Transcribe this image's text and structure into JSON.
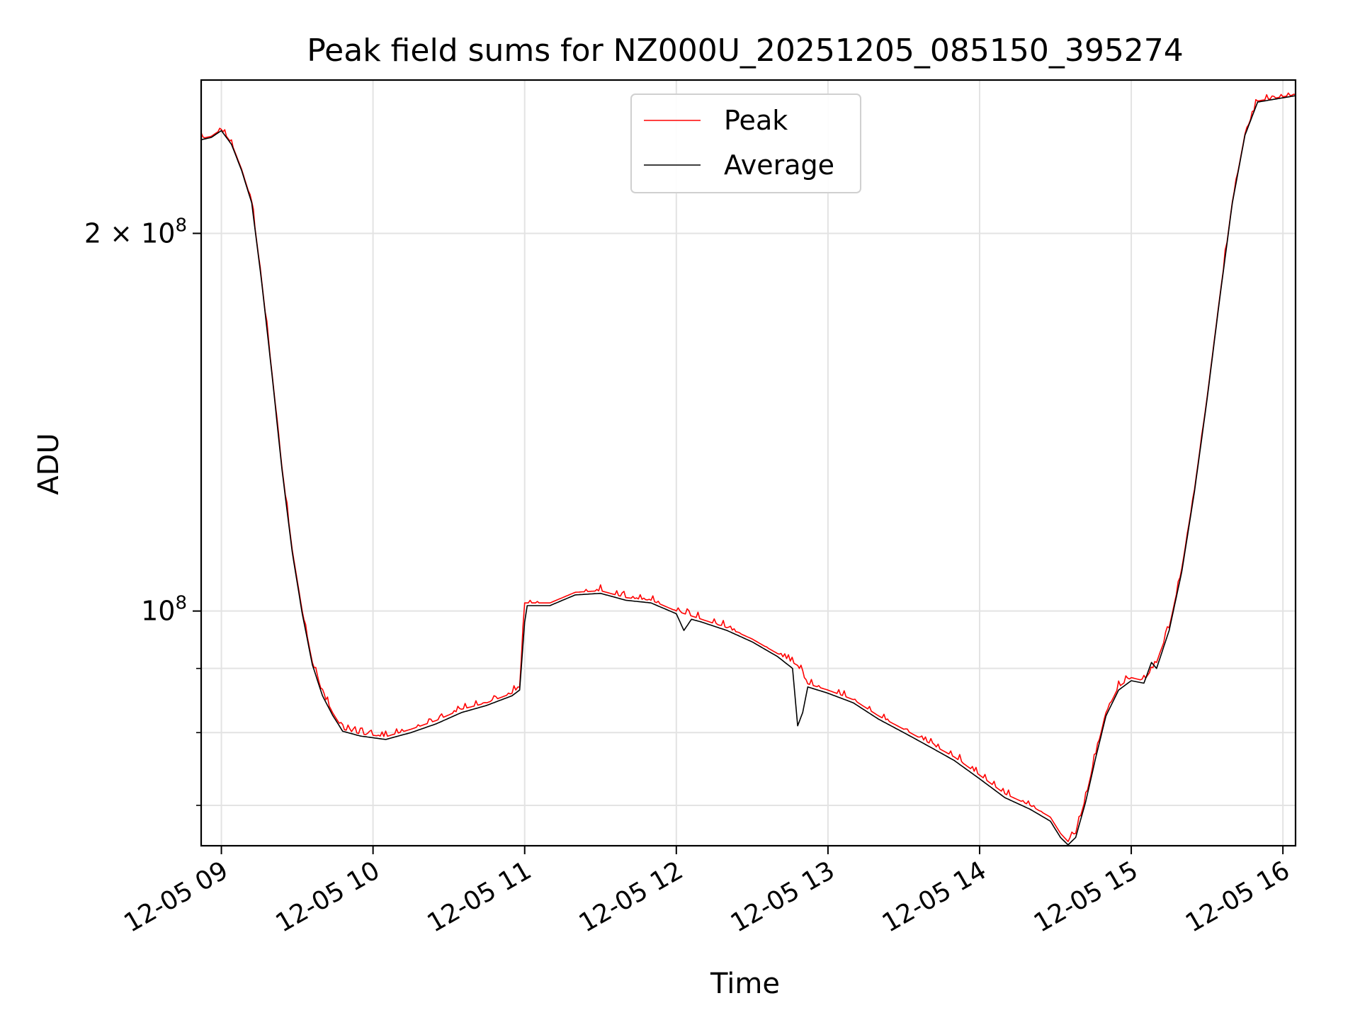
{
  "chart_data": {
    "type": "line",
    "title": "Peak field sums for NZ000U_20251205_085150_395274",
    "xlabel": "Time",
    "ylabel": "ADU",
    "yscale": "log",
    "xlim": [
      "2025-12-05 08:52",
      "2025-12-05 16:05"
    ],
    "ylim": [
      65000000,
      265000000
    ],
    "grid": true,
    "legend_position": "top-center",
    "x_ticks": [
      {
        "time": "2025-12-05 09:00",
        "label": "12-05 09"
      },
      {
        "time": "2025-12-05 10:00",
        "label": "12-05 10"
      },
      {
        "time": "2025-12-05 11:00",
        "label": "12-05 11"
      },
      {
        "time": "2025-12-05 12:00",
        "label": "12-05 12"
      },
      {
        "time": "2025-12-05 13:00",
        "label": "12-05 13"
      },
      {
        "time": "2025-12-05 14:00",
        "label": "12-05 14"
      },
      {
        "time": "2025-12-05 15:00",
        "label": "12-05 15"
      },
      {
        "time": "2025-12-05 16:00",
        "label": "12-05 16"
      }
    ],
    "y_major_ticks": [
      {
        "value": 100000000,
        "base": "10",
        "exp": "8",
        "mult": ""
      },
      {
        "value": 200000000,
        "base": "10",
        "exp": "8",
        "mult": "2 × "
      }
    ],
    "y_minor_ticks": [
      70000000,
      80000000,
      90000000
    ],
    "series": [
      {
        "name": "Peak",
        "color": "#ff0000",
        "jitter": true,
        "points": [
          [
            "2025-12-05 08:52",
            238000000
          ],
          [
            "2025-12-05 08:56",
            239000000
          ],
          [
            "2025-12-05 09:00",
            242000000
          ],
          [
            "2025-12-05 09:04",
            236000000
          ],
          [
            "2025-12-05 09:08",
            225000000
          ],
          [
            "2025-12-05 09:12",
            212000000
          ],
          [
            "2025-12-05 09:16",
            183000000
          ],
          [
            "2025-12-05 09:20",
            155000000
          ],
          [
            "2025-12-05 09:24",
            130000000
          ],
          [
            "2025-12-05 09:28",
            112000000
          ],
          [
            "2025-12-05 09:32",
            100000000
          ],
          [
            "2025-12-05 09:36",
            91000000
          ],
          [
            "2025-12-05 09:40",
            86000000
          ],
          [
            "2025-12-05 09:44",
            83000000
          ],
          [
            "2025-12-05 09:48",
            80500000
          ],
          [
            "2025-12-05 09:55",
            79800000
          ],
          [
            "2025-12-05 10:05",
            79400000
          ],
          [
            "2025-12-05 10:15",
            80500000
          ],
          [
            "2025-12-05 10:25",
            81800000
          ],
          [
            "2025-12-05 10:35",
            83500000
          ],
          [
            "2025-12-05 10:45",
            84500000
          ],
          [
            "2025-12-05 10:55",
            86000000
          ],
          [
            "2025-12-05 10:58",
            87000000
          ],
          [
            "2025-12-05 11:00",
            101500000
          ],
          [
            "2025-12-05 11:10",
            101500000
          ],
          [
            "2025-12-05 11:20",
            103500000
          ],
          [
            "2025-12-05 11:30",
            103800000
          ],
          [
            "2025-12-05 11:40",
            102500000
          ],
          [
            "2025-12-05 11:50",
            102000000
          ],
          [
            "2025-12-05 12:00",
            100000000
          ],
          [
            "2025-12-05 12:10",
            98500000
          ],
          [
            "2025-12-05 12:20",
            97000000
          ],
          [
            "2025-12-05 12:30",
            95000000
          ],
          [
            "2025-12-05 12:40",
            92500000
          ],
          [
            "2025-12-05 12:48",
            90500000
          ],
          [
            "2025-12-05 12:52",
            87500000
          ],
          [
            "2025-12-05 13:00",
            86500000
          ],
          [
            "2025-12-05 13:10",
            85000000
          ],
          [
            "2025-12-05 13:20",
            82500000
          ],
          [
            "2025-12-05 13:30",
            80500000
          ],
          [
            "2025-12-05 13:40",
            78500000
          ],
          [
            "2025-12-05 13:50",
            76500000
          ],
          [
            "2025-12-05 14:00",
            74000000
          ],
          [
            "2025-12-05 14:10",
            71500000
          ],
          [
            "2025-12-05 14:20",
            70000000
          ],
          [
            "2025-12-05 14:28",
            68500000
          ],
          [
            "2025-12-05 14:32",
            66500000
          ],
          [
            "2025-12-05 14:35",
            65500000
          ],
          [
            "2025-12-05 14:38",
            66500000
          ],
          [
            "2025-12-05 14:42",
            71000000
          ],
          [
            "2025-12-05 14:46",
            77000000
          ],
          [
            "2025-12-05 14:50",
            83000000
          ],
          [
            "2025-12-05 14:55",
            87000000
          ],
          [
            "2025-12-05 15:00",
            88500000
          ],
          [
            "2025-12-05 15:05",
            88000000
          ],
          [
            "2025-12-05 15:10",
            91000000
          ],
          [
            "2025-12-05 15:15",
            97000000
          ],
          [
            "2025-12-05 15:20",
            108000000
          ],
          [
            "2025-12-05 15:25",
            125000000
          ],
          [
            "2025-12-05 15:30",
            148000000
          ],
          [
            "2025-12-05 15:35",
            178000000
          ],
          [
            "2025-12-05 15:40",
            212000000
          ],
          [
            "2025-12-05 15:45",
            240000000
          ],
          [
            "2025-12-05 15:50",
            255000000
          ],
          [
            "2025-12-05 16:05",
            258000000
          ]
        ]
      },
      {
        "name": "Average",
        "color": "#000000",
        "jitter": false,
        "points": [
          [
            "2025-12-05 08:52",
            237500000
          ],
          [
            "2025-12-05 08:56",
            238500000
          ],
          [
            "2025-12-05 09:00",
            241500000
          ],
          [
            "2025-12-05 09:04",
            235500000
          ],
          [
            "2025-12-05 09:08",
            224500000
          ],
          [
            "2025-12-05 09:12",
            211500000
          ],
          [
            "2025-12-05 09:16",
            182500000
          ],
          [
            "2025-12-05 09:20",
            154500000
          ],
          [
            "2025-12-05 09:24",
            129500000
          ],
          [
            "2025-12-05 09:28",
            111500000
          ],
          [
            "2025-12-05 09:32",
            99500000
          ],
          [
            "2025-12-05 09:36",
            90600000
          ],
          [
            "2025-12-05 09:40",
            85600000
          ],
          [
            "2025-12-05 09:44",
            82600000
          ],
          [
            "2025-12-05 09:48",
            80200000
          ],
          [
            "2025-12-05 09:55",
            79500000
          ],
          [
            "2025-12-05 10:05",
            79000000
          ],
          [
            "2025-12-05 10:15",
            80000000
          ],
          [
            "2025-12-05 10:25",
            81300000
          ],
          [
            "2025-12-05 10:35",
            83000000
          ],
          [
            "2025-12-05 10:45",
            84100000
          ],
          [
            "2025-12-05 10:55",
            85600000
          ],
          [
            "2025-12-05 10:58",
            86500000
          ],
          [
            "2025-12-05 11:00",
            98000000
          ],
          [
            "2025-12-05 11:01",
            101000000
          ],
          [
            "2025-12-05 11:10",
            101000000
          ],
          [
            "2025-12-05 11:20",
            103000000
          ],
          [
            "2025-12-05 11:30",
            103300000
          ],
          [
            "2025-12-05 11:40",
            102000000
          ],
          [
            "2025-12-05 11:50",
            101500000
          ],
          [
            "2025-12-05 12:00",
            99500000
          ],
          [
            "2025-12-05 12:03",
            96500000
          ],
          [
            "2025-12-05 12:06",
            98500000
          ],
          [
            "2025-12-05 12:10",
            98000000
          ],
          [
            "2025-12-05 12:20",
            96500000
          ],
          [
            "2025-12-05 12:30",
            94500000
          ],
          [
            "2025-12-05 12:40",
            92000000
          ],
          [
            "2025-12-05 12:46",
            90000000
          ],
          [
            "2025-12-05 12:48",
            81000000
          ],
          [
            "2025-12-05 12:50",
            83000000
          ],
          [
            "2025-12-05 12:52",
            87000000
          ],
          [
            "2025-12-05 13:00",
            86000000
          ],
          [
            "2025-12-05 13:10",
            84500000
          ],
          [
            "2025-12-05 13:20",
            82000000
          ],
          [
            "2025-12-05 13:30",
            80000000
          ],
          [
            "2025-12-05 13:40",
            78000000
          ],
          [
            "2025-12-05 13:50",
            76000000
          ],
          [
            "2025-12-05 14:00",
            73500000
          ],
          [
            "2025-12-05 14:10",
            71000000
          ],
          [
            "2025-12-05 14:20",
            69500000
          ],
          [
            "2025-12-05 14:28",
            68000000
          ],
          [
            "2025-12-05 14:32",
            66000000
          ],
          [
            "2025-12-05 14:35",
            65100000
          ],
          [
            "2025-12-05 14:38",
            66000000
          ],
          [
            "2025-12-05 14:42",
            70500000
          ],
          [
            "2025-12-05 14:46",
            76500000
          ],
          [
            "2025-12-05 14:50",
            82500000
          ],
          [
            "2025-12-05 14:55",
            86500000
          ],
          [
            "2025-12-05 15:00",
            88000000
          ],
          [
            "2025-12-05 15:05",
            87600000
          ],
          [
            "2025-12-05 15:08",
            91000000
          ],
          [
            "2025-12-05 15:10",
            90000000
          ],
          [
            "2025-12-05 15:15",
            96500000
          ],
          [
            "2025-12-05 15:20",
            107500000
          ],
          [
            "2025-12-05 15:25",
            124500000
          ],
          [
            "2025-12-05 15:30",
            147500000
          ],
          [
            "2025-12-05 15:35",
            177500000
          ],
          [
            "2025-12-05 15:40",
            211500000
          ],
          [
            "2025-12-05 15:45",
            239500000
          ],
          [
            "2025-12-05 15:50",
            254500000
          ],
          [
            "2025-12-05 16:05",
            257500000
          ]
        ]
      }
    ]
  }
}
